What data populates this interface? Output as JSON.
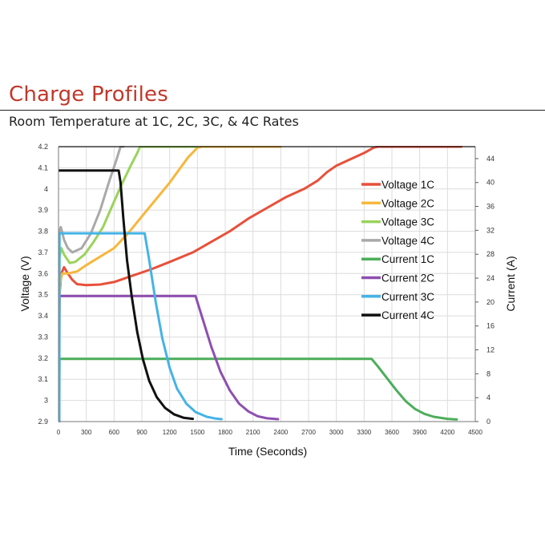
{
  "header": {
    "title": "Charge Profiles",
    "subtitle": "Room Temperature at 1C, 2C, 3C, & 4C Rates"
  },
  "chart_data": {
    "type": "line",
    "xlabel": "Time (Seconds)",
    "ylabel_left": "Voltage (V)",
    "ylabel_right": "Current (A)",
    "xlim": [
      0,
      4500
    ],
    "ylim_left": [
      2.9,
      4.2
    ],
    "ylim_right": [
      0,
      46
    ],
    "x_ticks": [
      0,
      300,
      600,
      900,
      1200,
      1500,
      1800,
      2100,
      2400,
      2700,
      3000,
      3300,
      3600,
      3900,
      4200,
      4500
    ],
    "y_left_ticks": [
      "2.9",
      "3",
      "3.1",
      "3.2",
      "3.3",
      "3.4",
      "3.5",
      "3.6",
      "3.7",
      "3.8",
      "3.9",
      "4",
      "4.1",
      "4.2"
    ],
    "y_right_ticks": [
      "0",
      "4",
      "8",
      "12",
      "16",
      "20",
      "24",
      "28",
      "32",
      "36",
      "40",
      "44"
    ],
    "grid": true,
    "legend_position": "right",
    "series": [
      {
        "name": "Voltage 1C",
        "axis": "left",
        "color": "#e8503a",
        "points": [
          [
            0,
            3.05
          ],
          [
            10,
            3.5
          ],
          [
            30,
            3.6
          ],
          [
            60,
            3.63
          ],
          [
            100,
            3.6
          ],
          [
            150,
            3.57
          ],
          [
            200,
            3.55
          ],
          [
            300,
            3.545
          ],
          [
            450,
            3.548
          ],
          [
            600,
            3.56
          ],
          [
            800,
            3.59
          ],
          [
            1000,
            3.62
          ],
          [
            1200,
            3.655
          ],
          [
            1450,
            3.7
          ],
          [
            1650,
            3.75
          ],
          [
            1850,
            3.8
          ],
          [
            2050,
            3.86
          ],
          [
            2250,
            3.91
          ],
          [
            2450,
            3.96
          ],
          [
            2650,
            4.0
          ],
          [
            2800,
            4.04
          ],
          [
            2900,
            4.08
          ],
          [
            3000,
            4.11
          ],
          [
            3150,
            4.14
          ],
          [
            3300,
            4.17
          ],
          [
            3400,
            4.195
          ],
          [
            3450,
            4.2
          ],
          [
            4350,
            4.2
          ]
        ]
      },
      {
        "name": "Voltage 2C",
        "axis": "left",
        "color": "#f6b73c",
        "points": [
          [
            0,
            3.1
          ],
          [
            15,
            3.55
          ],
          [
            40,
            3.6
          ],
          [
            100,
            3.6
          ],
          [
            200,
            3.61
          ],
          [
            300,
            3.64
          ],
          [
            450,
            3.68
          ],
          [
            600,
            3.72
          ],
          [
            750,
            3.79
          ],
          [
            900,
            3.87
          ],
          [
            1050,
            3.95
          ],
          [
            1200,
            4.03
          ],
          [
            1300,
            4.09
          ],
          [
            1400,
            4.15
          ],
          [
            1500,
            4.195
          ],
          [
            1550,
            4.2
          ],
          [
            2400,
            4.2
          ]
        ]
      },
      {
        "name": "Voltage 3C",
        "axis": "left",
        "color": "#9ad35c",
        "points": [
          [
            0,
            3.12
          ],
          [
            10,
            3.68
          ],
          [
            30,
            3.72
          ],
          [
            60,
            3.69
          ],
          [
            120,
            3.65
          ],
          [
            180,
            3.655
          ],
          [
            280,
            3.69
          ],
          [
            380,
            3.75
          ],
          [
            480,
            3.82
          ],
          [
            580,
            3.92
          ],
          [
            680,
            4.02
          ],
          [
            780,
            4.11
          ],
          [
            850,
            4.17
          ],
          [
            880,
            4.2
          ],
          [
            1500,
            4.2
          ]
        ]
      },
      {
        "name": "Voltage 4C",
        "axis": "left",
        "color": "#a9a9a9",
        "points": [
          [
            0,
            3.2
          ],
          [
            10,
            3.8
          ],
          [
            25,
            3.82
          ],
          [
            60,
            3.76
          ],
          [
            100,
            3.72
          ],
          [
            150,
            3.7
          ],
          [
            250,
            3.72
          ],
          [
            350,
            3.79
          ],
          [
            450,
            3.9
          ],
          [
            550,
            4.04
          ],
          [
            620,
            4.13
          ],
          [
            670,
            4.2
          ],
          [
            700,
            4.2
          ]
        ]
      },
      {
        "name": "Current 1C",
        "axis": "right",
        "color": "#4cae5a",
        "points": [
          [
            0,
            0
          ],
          [
            8,
            0
          ],
          [
            10,
            10.5
          ],
          [
            3380,
            10.5
          ],
          [
            3450,
            9.2
          ],
          [
            3550,
            7.2
          ],
          [
            3650,
            5.2
          ],
          [
            3750,
            3.4
          ],
          [
            3850,
            2.1
          ],
          [
            3950,
            1.3
          ],
          [
            4050,
            0.8
          ],
          [
            4200,
            0.45
          ],
          [
            4300,
            0.35
          ]
        ]
      },
      {
        "name": "Current 2C",
        "axis": "right",
        "color": "#8e4fb0",
        "points": [
          [
            0,
            0
          ],
          [
            8,
            0
          ],
          [
            10,
            21
          ],
          [
            1480,
            21
          ],
          [
            1550,
            17.5
          ],
          [
            1650,
            12.5
          ],
          [
            1750,
            8.3
          ],
          [
            1850,
            5.2
          ],
          [
            1950,
            3.0
          ],
          [
            2050,
            1.7
          ],
          [
            2150,
            0.9
          ],
          [
            2250,
            0.55
          ],
          [
            2370,
            0.4
          ]
        ]
      },
      {
        "name": "Current 3C",
        "axis": "right",
        "color": "#45b3e6",
        "points": [
          [
            0,
            0
          ],
          [
            8,
            0
          ],
          [
            10,
            31.5
          ],
          [
            930,
            31.5
          ],
          [
            980,
            27
          ],
          [
            1050,
            20
          ],
          [
            1120,
            14
          ],
          [
            1200,
            9
          ],
          [
            1280,
            5.5
          ],
          [
            1380,
            3.0
          ],
          [
            1480,
            1.6
          ],
          [
            1600,
            0.8
          ],
          [
            1700,
            0.5
          ],
          [
            1760,
            0.4
          ]
        ]
      },
      {
        "name": "Current 4C",
        "axis": "right",
        "color": "#111111",
        "points": [
          [
            0,
            42
          ],
          [
            650,
            42
          ],
          [
            670,
            40
          ],
          [
            700,
            34
          ],
          [
            740,
            27
          ],
          [
            790,
            21
          ],
          [
            850,
            15
          ],
          [
            910,
            10.5
          ],
          [
            980,
            6.8
          ],
          [
            1060,
            4.1
          ],
          [
            1150,
            2.3
          ],
          [
            1250,
            1.2
          ],
          [
            1350,
            0.65
          ],
          [
            1450,
            0.45
          ]
        ]
      }
    ]
  }
}
